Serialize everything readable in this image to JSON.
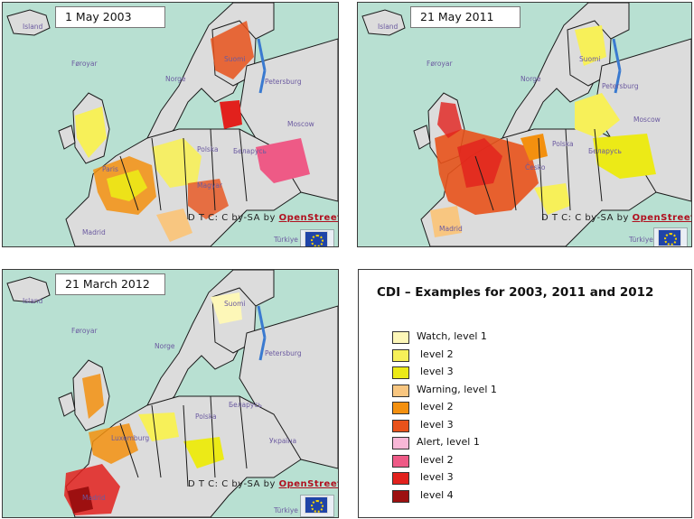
{
  "maps": [
    {
      "date": "1 May 2003",
      "labels": [
        "Island",
        "Føroyar",
        "Norge",
        "Suomi",
        "Petersburg",
        "Moscow",
        "Беларусь",
        "Polska",
        "Magyar",
        "Madrid",
        "Paris",
        "Türkiye"
      ],
      "attribution": "D T C: C by-SA by",
      "attribution_link": "OpenStreetMap"
    },
    {
      "date": "21 May 2011",
      "labels": [
        "Island",
        "Føroyar",
        "Norge",
        "Suomi",
        "Petersburg",
        "Moscow",
        "Беларусь",
        "Polska",
        "Česko",
        "Madrid",
        "Türkiye"
      ],
      "attribution": "D T C: C by-SA by",
      "attribution_link": "OpenStreetMap"
    },
    {
      "date": "21 March 2012",
      "labels": [
        "Island",
        "Føroyar",
        "Norge",
        "Suomi",
        "Petersburg",
        "Беларусь",
        "Polska",
        "Україна",
        "Luxemburg",
        "Madrid",
        "Türkiye"
      ],
      "attribution": "D T C: C by-SA by",
      "attribution_link": "OpenStreetMap"
    }
  ],
  "legend": {
    "title": "CDI – Examples for 2003, 2011 and 2012",
    "items": [
      {
        "label": "Watch, level 1",
        "color": "#fdf7b8"
      },
      {
        "label": "level 2",
        "color": "#f7f059"
      },
      {
        "label": "level 3",
        "color": "#ecea17"
      },
      {
        "label": "Warning, level 1",
        "color": "#f8c680"
      },
      {
        "label": "level 2",
        "color": "#f3900f"
      },
      {
        "label": "level 3",
        "color": "#e8521b"
      },
      {
        "label": "Alert, level 1",
        "color": "#f8b7d7"
      },
      {
        "label": "level 2",
        "color": "#ee5a86"
      },
      {
        "label": "level 3",
        "color": "#e2211d"
      },
      {
        "label": "level 4",
        "color": "#9d1010"
      }
    ]
  },
  "colors": {
    "sea": "#b8e0d2",
    "land": "#dcdcdc",
    "border": "#1a1a1a"
  }
}
